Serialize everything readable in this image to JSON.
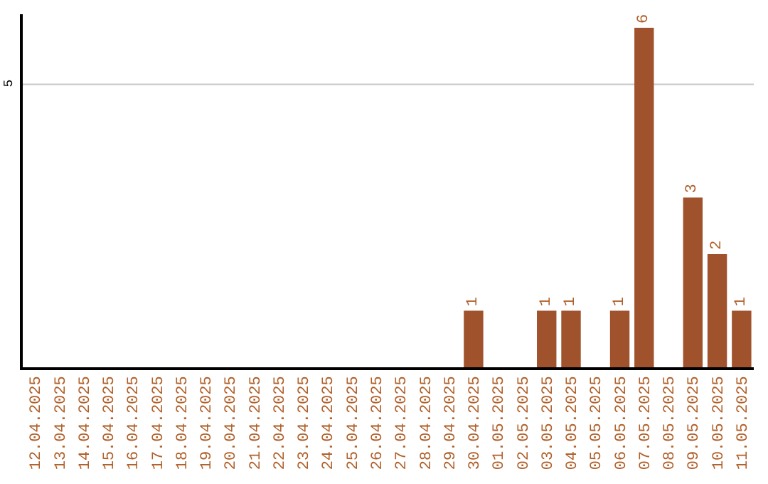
{
  "chart_data": {
    "type": "bar",
    "categories": [
      "12.04.2025",
      "13.04.2025",
      "14.04.2025",
      "15.04.2025",
      "16.04.2025",
      "17.04.2025",
      "18.04.2025",
      "19.04.2025",
      "20.04.2025",
      "21.04.2025",
      "22.04.2025",
      "23.04.2025",
      "24.04.2025",
      "25.04.2025",
      "26.04.2025",
      "27.04.2025",
      "28.04.2025",
      "29.04.2025",
      "30.04.2025",
      "01.05.2025",
      "02.05.2025",
      "03.05.2025",
      "04.05.2025",
      "05.05.2025",
      "06.05.2025",
      "07.05.2025",
      "08.05.2025",
      "09.05.2025",
      "10.05.2025",
      "11.05.2025"
    ],
    "values": [
      null,
      null,
      null,
      null,
      null,
      null,
      null,
      null,
      null,
      null,
      null,
      null,
      null,
      null,
      null,
      null,
      null,
      null,
      1,
      null,
      null,
      1,
      1,
      null,
      1,
      6,
      null,
      3,
      2,
      1
    ],
    "value_labels": [
      null,
      null,
      null,
      null,
      null,
      null,
      null,
      null,
      null,
      null,
      null,
      null,
      null,
      null,
      null,
      null,
      null,
      null,
      "1",
      null,
      null,
      "1",
      "1",
      null,
      "1",
      "6",
      null,
      "3",
      "2",
      "1"
    ],
    "color": "#a0522d",
    "ref_lines": [
      {
        "axis": "y",
        "value": 5,
        "label": "5",
        "color": "#c8c8c8"
      }
    ]
  }
}
